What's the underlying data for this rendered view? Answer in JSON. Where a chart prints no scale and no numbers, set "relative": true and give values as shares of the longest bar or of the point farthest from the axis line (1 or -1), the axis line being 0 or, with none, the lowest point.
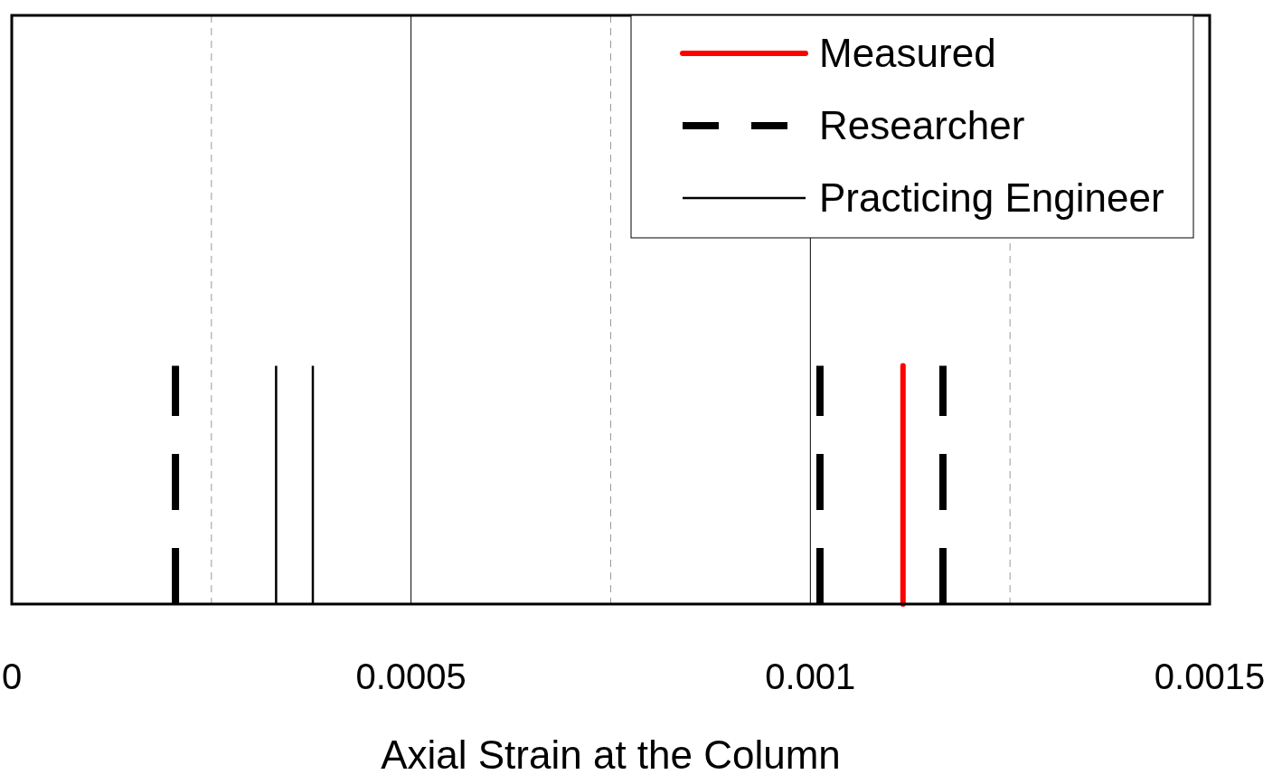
{
  "chart_data": {
    "type": "line",
    "xlabel": "Axial Strain at the Column",
    "relative": true,
    "xlim": [
      0,
      0.0015
    ],
    "xticks": [
      0,
      {
        "value": 0.00025,
        "label": null
      },
      0.0005,
      {
        "value": 0.00075,
        "label": null
      },
      0.001,
      {
        "value": 0.00125,
        "label": null
      },
      0.0015
    ],
    "grid": "x",
    "legend": "top right",
    "tick_labels": "x",
    "marker": "none",
    "series": [
      {
        "name": "Measured",
        "color": "#ff0000",
        "line_style": "solid",
        "x": [
          0.001116,
          0.001116
        ],
        "values": [
          0,
          1
        ]
      },
      {
        "name": "Researcher",
        "color": "#000000",
        "line_style": "dashed",
        "x": [
          0.000205,
          0.000205,
          null,
          0.001012,
          0.001012,
          null,
          0.001166,
          0.001166
        ],
        "values": [
          0,
          1,
          null,
          0,
          1,
          null,
          0,
          1
        ]
      },
      {
        "name": "Practicing Engineer",
        "color": "#000000",
        "line_style": "solid",
        "x": [
          0.000331,
          0.000331,
          null,
          0.000377,
          0.000377
        ],
        "values": [
          0,
          1,
          null,
          0,
          1
        ]
      }
    ]
  }
}
